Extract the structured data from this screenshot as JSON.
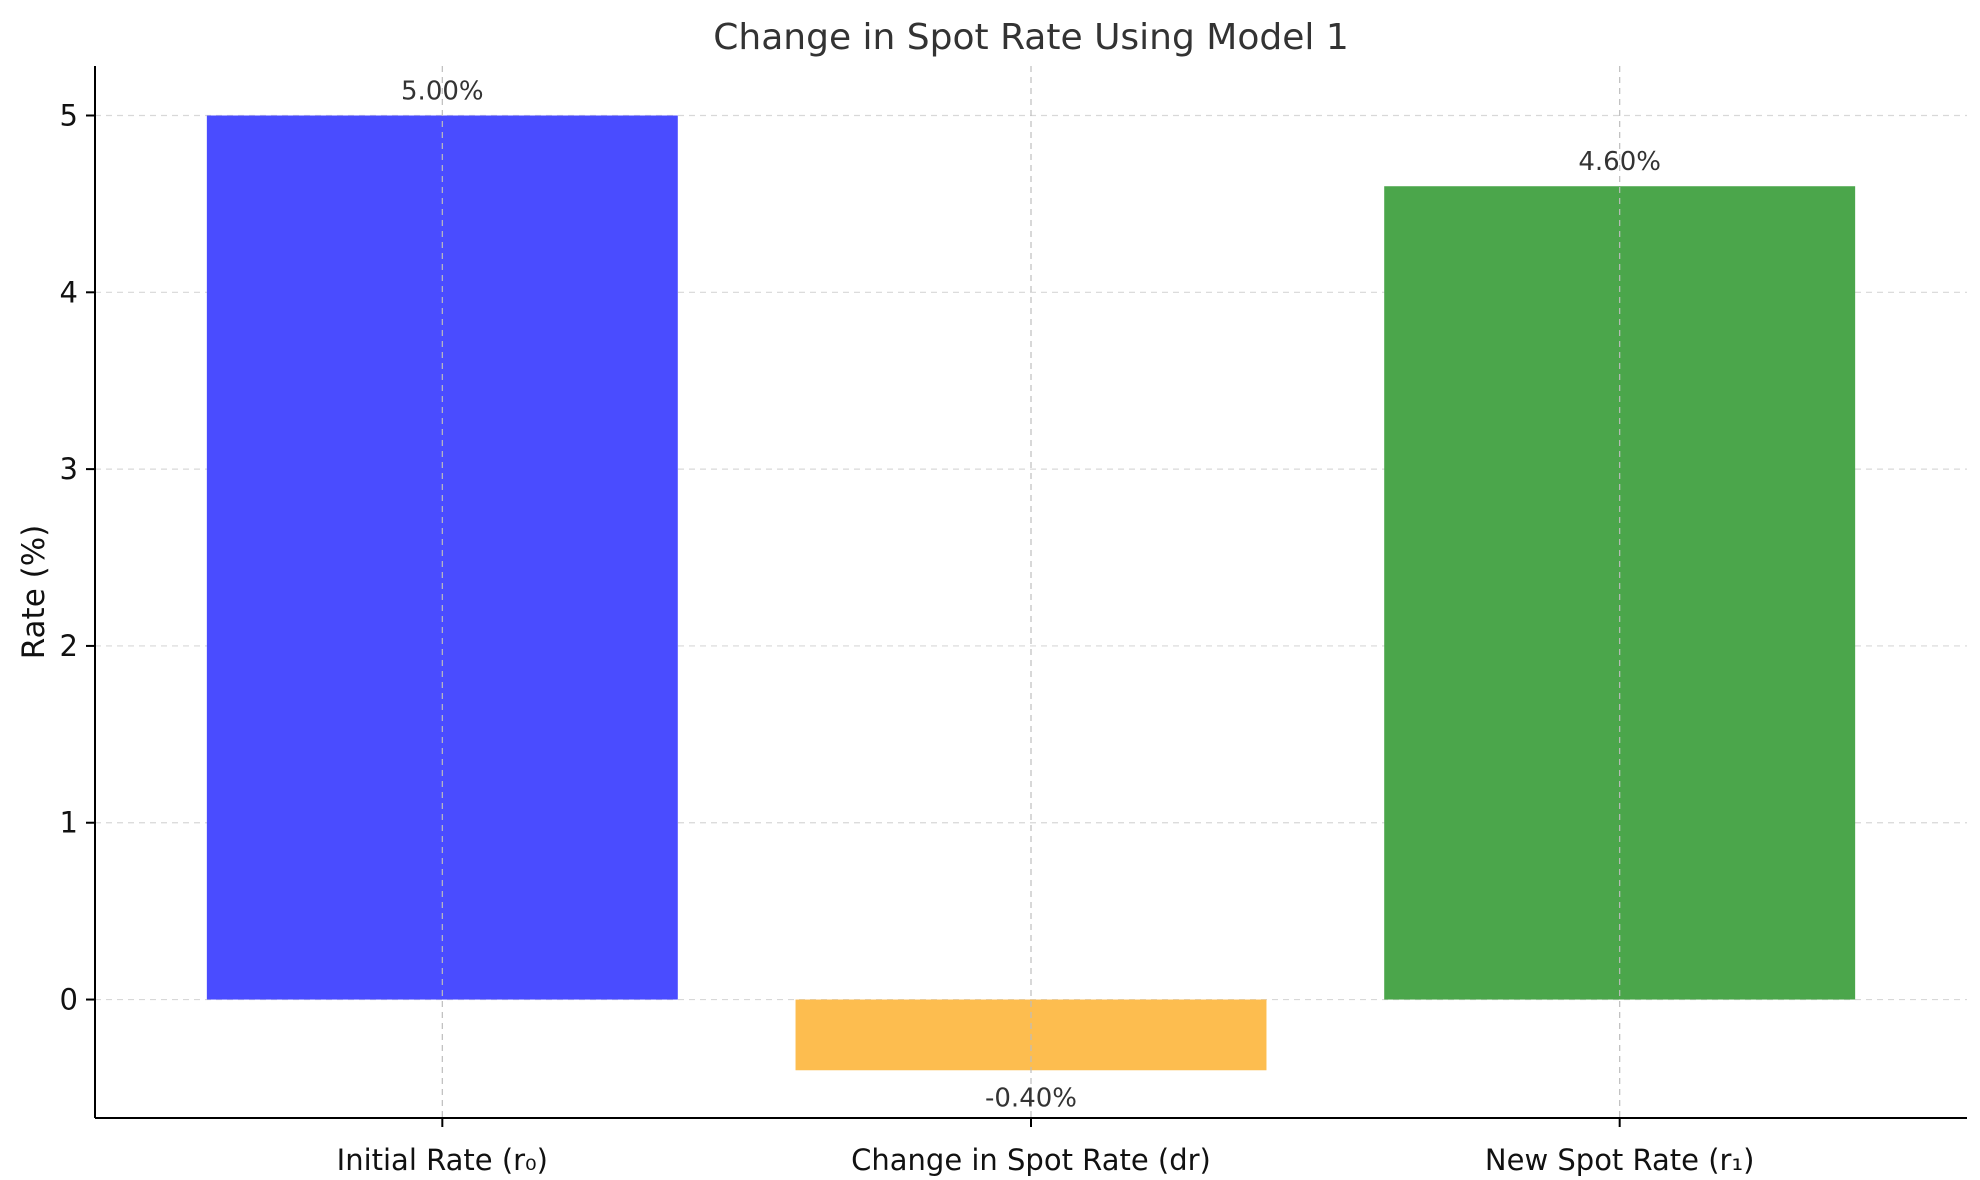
{
  "chart_data": {
    "type": "bar",
    "title": "Change in Spot Rate Using Model 1",
    "xlabel": "",
    "ylabel": "Rate (%)",
    "categories": [
      "Initial Rate (r₀)",
      "Change in Spot Rate (dr)",
      "New Spot Rate (r₁)"
    ],
    "values": [
      5.0,
      -0.4,
      4.6
    ],
    "value_labels": [
      "5.00%",
      "-0.40%",
      "4.60%"
    ],
    "colors": [
      "#4a4cff",
      "#fdbd4f",
      "#4ba64b"
    ],
    "ylim": [
      -0.67,
      5.28
    ],
    "yticks": [
      0,
      1,
      2,
      3,
      4,
      5
    ],
    "grid": true,
    "legend": "none"
  }
}
